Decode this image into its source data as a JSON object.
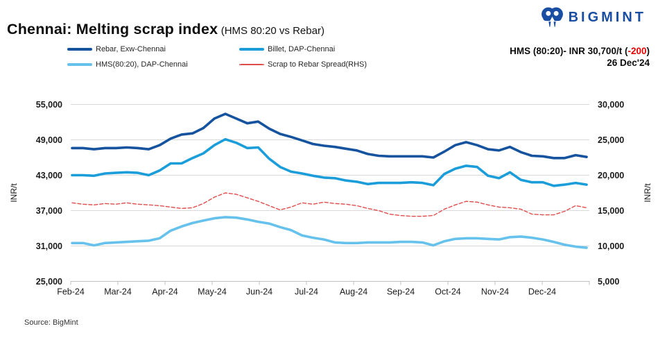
{
  "header": {
    "title": "Chennai: Melting scrap index",
    "subtitle": "(HMS 80:20 vs Rebar)"
  },
  "logo": {
    "text": "BIGMINT"
  },
  "annotation": {
    "price_text": "HMS (80:20)- INR 30,700/t",
    "change_open": "(",
    "change_value": "-200",
    "change_close": ")",
    "date_text": "26 Dec'24"
  },
  "legend": {
    "items": [
      {
        "label": "Rebar, Exw-Chennai",
        "color": "#15539e",
        "dashed": false
      },
      {
        "label": "Billet, DAP-Chennai",
        "color": "#1b9dd9",
        "dashed": false
      },
      {
        "label": "HMS(80:20), DAP-Chennai",
        "color": "#66c2ec",
        "dashed": false
      },
      {
        "label": "Scrap to Rebar Spread(RHS)",
        "color": "#e04c4c",
        "dashed": true
      }
    ]
  },
  "source": {
    "text": "Source: BigMint"
  },
  "chart_data": {
    "type": "line",
    "title": "Chennai: Melting scrap index (HMS 80:20 vs Rebar)",
    "grid": "horizontal",
    "legend_position": "top",
    "x": [
      "02-Feb",
      "09-Feb",
      "16-Feb",
      "23-Feb",
      "01-Mar",
      "08-Mar",
      "15-Mar",
      "22-Mar",
      "29-Mar",
      "05-Apr",
      "12-Apr",
      "19-Apr",
      "26-Apr",
      "03-May",
      "10-May",
      "17-May",
      "24-May",
      "31-May",
      "07-Jun",
      "14-Jun",
      "21-Jun",
      "28-Jun",
      "05-Jul",
      "12-Jul",
      "19-Jul",
      "26-Jul",
      "02-Aug",
      "09-Aug",
      "16-Aug",
      "23-Aug",
      "30-Aug",
      "06-Sep",
      "13-Sep",
      "20-Sep",
      "27-Sep",
      "04-Oct",
      "11-Oct",
      "18-Oct",
      "25-Oct",
      "01-Nov",
      "08-Nov",
      "15-Nov",
      "22-Nov",
      "29-Nov",
      "06-Dec",
      "13-Dec",
      "20-Dec",
      "26-Dec"
    ],
    "x_tick_labels": [
      "Feb-24",
      "Mar-24",
      "Apr-24",
      "May-24",
      "Jun-24",
      "Jul-24",
      "Aug-24",
      "Sep-24",
      "Oct-24",
      "Nov-24",
      "Dec-24"
    ],
    "y_left": {
      "label": "INR/t",
      "min": 25000,
      "max": 55000,
      "step": 6000
    },
    "y_right": {
      "label": "INR/t",
      "min": 5000,
      "max": 30000,
      "step": 5000
    },
    "series": [
      {
        "name": "Rebar, Exw-Chennai",
        "axis": "left",
        "color": "#15539e",
        "dashed": false,
        "values": [
          47600,
          47600,
          47400,
          47600,
          47600,
          47700,
          47600,
          47400,
          48100,
          49200,
          49900,
          50100,
          51000,
          52600,
          53400,
          52600,
          51800,
          52100,
          50900,
          50000,
          49500,
          48900,
          48300,
          48000,
          47800,
          47500,
          47200,
          46600,
          46300,
          46200,
          46200,
          46200,
          46200,
          46000,
          47000,
          48100,
          48600,
          48100,
          47400,
          47200,
          47800,
          46900,
          46300,
          46200,
          45900,
          45900,
          46400,
          46100
        ]
      },
      {
        "name": "Billet, DAP-Chennai",
        "axis": "left",
        "color": "#1b9dd9",
        "dashed": false,
        "values": [
          43000,
          43000,
          42900,
          43300,
          43400,
          43500,
          43400,
          43000,
          43800,
          45000,
          45000,
          45900,
          46700,
          48100,
          49100,
          48500,
          47600,
          47700,
          45800,
          44400,
          43600,
          43300,
          42900,
          42600,
          42500,
          42100,
          41900,
          41500,
          41700,
          41700,
          41700,
          41800,
          41700,
          41300,
          43200,
          44100,
          44600,
          44400,
          42900,
          42500,
          43500,
          42200,
          41800,
          41800,
          41200,
          41400,
          41700,
          41400
        ]
      },
      {
        "name": "HMS(80:20), DAP-Chennai",
        "axis": "left",
        "color": "#66c2ec",
        "dashed": false,
        "values": [
          31500,
          31500,
          31100,
          31500,
          31600,
          31700,
          31800,
          31900,
          32300,
          33600,
          34300,
          34900,
          35300,
          35700,
          35900,
          35800,
          35500,
          35100,
          34800,
          34200,
          33700,
          32800,
          32400,
          32100,
          31600,
          31500,
          31500,
          31600,
          31600,
          31600,
          31700,
          31700,
          31600,
          31100,
          31800,
          32200,
          32300,
          32300,
          32200,
          32100,
          32500,
          32600,
          32400,
          32100,
          31700,
          31200,
          30900,
          30700
        ]
      },
      {
        "name": "Scrap to Rebar Spread(RHS)",
        "axis": "right",
        "color": "#e04c4c",
        "dashed": true,
        "values": [
          16100,
          15900,
          15800,
          16000,
          15900,
          16100,
          15900,
          15800,
          15700,
          15500,
          15300,
          15400,
          16000,
          16900,
          17500,
          17300,
          16800,
          16300,
          15700,
          15100,
          15500,
          16100,
          15900,
          16200,
          16000,
          15900,
          15700,
          15300,
          15000,
          14500,
          14300,
          14200,
          14200,
          14300,
          15200,
          15800,
          16300,
          16200,
          15800,
          15500,
          15400,
          15200,
          14500,
          14400,
          14400,
          14900,
          15700,
          15400
        ]
      }
    ]
  }
}
